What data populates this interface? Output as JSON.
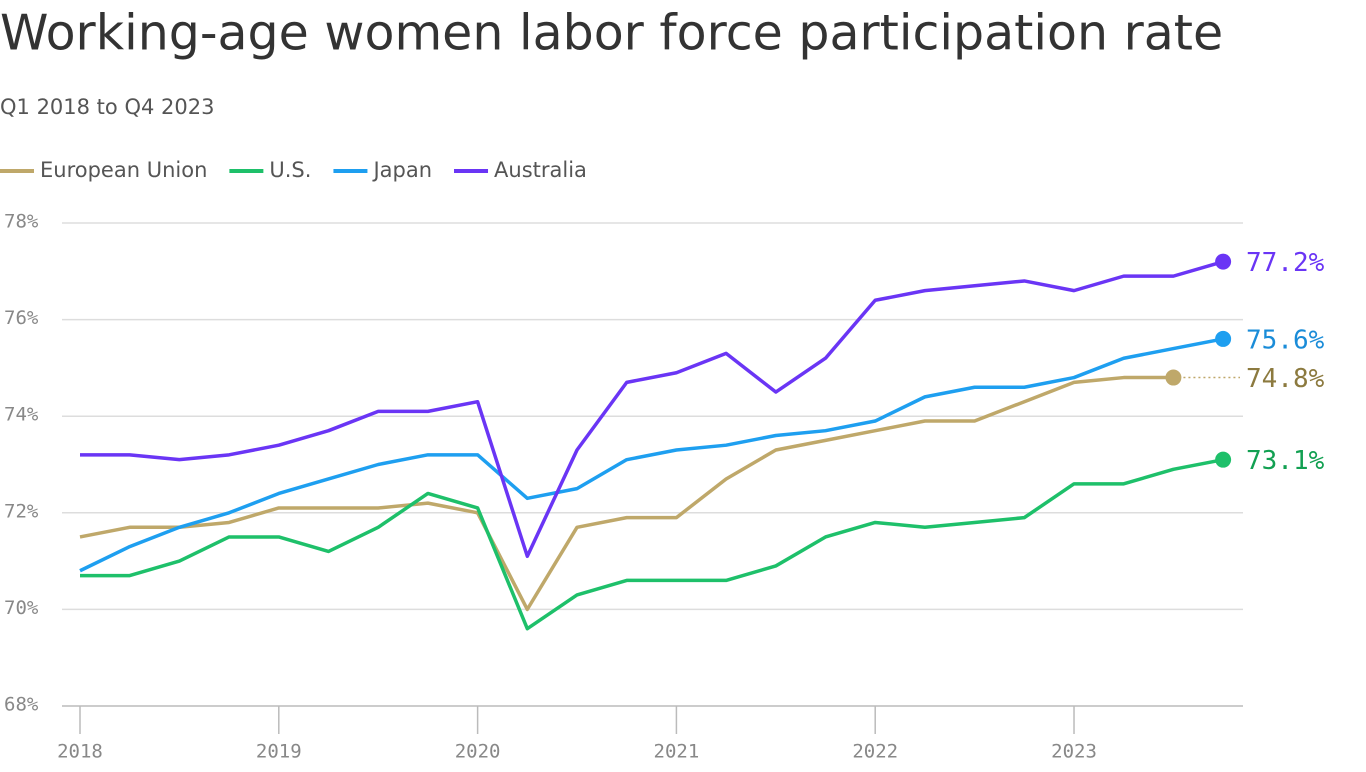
{
  "chart_data": {
    "type": "line",
    "title": "Working-age women labor force participation rate",
    "subtitle": "Q1 2018 to Q4 2023",
    "x": [
      2018,
      2018.25,
      2018.5,
      2018.75,
      2019,
      2019.25,
      2019.5,
      2019.75,
      2020,
      2020.25,
      2020.5,
      2020.75,
      2021,
      2021.25,
      2021.5,
      2021.75,
      2022,
      2022.25,
      2022.5,
      2022.75,
      2023,
      2023.25,
      2023.5,
      2023.75
    ],
    "xlim": [
      2018,
      2023.85
    ],
    "xticks": [
      2018,
      2019,
      2020,
      2021,
      2022,
      2023
    ],
    "ylim": [
      68,
      78
    ],
    "yticks": [
      {
        "value": 68,
        "label": "68%"
      },
      {
        "value": 70,
        "label": "70%"
      },
      {
        "value": 72,
        "label": "72%"
      },
      {
        "value": 74,
        "label": "74%"
      },
      {
        "value": 76,
        "label": "76%"
      },
      {
        "value": 78,
        "label": "78%"
      }
    ],
    "grid": true,
    "legend": "top-left",
    "series": [
      {
        "name": "European Union",
        "color": "#bfa86a",
        "label_color": "#8c7a3f",
        "values": [
          71.5,
          71.7,
          71.7,
          71.8,
          72.1,
          72.1,
          72.1,
          72.2,
          72.0,
          70.0,
          71.7,
          71.9,
          71.9,
          72.7,
          73.3,
          73.5,
          73.7,
          73.9,
          73.9,
          74.3,
          74.7,
          74.8,
          74.8,
          null
        ],
        "value_labels": [
          null,
          null,
          null,
          null,
          null,
          null,
          null,
          null,
          null,
          null,
          null,
          null,
          null,
          null,
          null,
          null,
          null,
          null,
          null,
          null,
          null,
          null,
          "74.8%",
          null
        ]
      },
      {
        "name": "U.S.",
        "color": "#1ec06a",
        "label_color": "#12a052",
        "values": [
          70.7,
          70.7,
          71.0,
          71.5,
          71.5,
          71.2,
          71.7,
          72.4,
          72.1,
          69.6,
          70.3,
          70.6,
          70.6,
          70.6,
          70.9,
          71.5,
          71.8,
          71.7,
          71.8,
          71.9,
          72.6,
          72.6,
          72.9,
          73.1
        ],
        "value_labels": [
          null,
          null,
          null,
          null,
          null,
          null,
          null,
          null,
          null,
          null,
          null,
          null,
          null,
          null,
          null,
          null,
          null,
          null,
          null,
          null,
          null,
          null,
          null,
          "73.1%"
        ]
      },
      {
        "name": "Japan",
        "color": "#1e9ff0",
        "label_color": "#1a8cd8",
        "values": [
          70.8,
          71.3,
          71.7,
          72.0,
          72.4,
          72.7,
          73.0,
          73.2,
          73.2,
          72.3,
          72.5,
          73.1,
          73.3,
          73.4,
          73.6,
          73.7,
          73.9,
          74.4,
          74.6,
          74.6,
          74.8,
          75.2,
          75.4,
          75.6
        ],
        "value_labels": [
          null,
          null,
          null,
          null,
          null,
          null,
          null,
          null,
          null,
          null,
          null,
          null,
          null,
          null,
          null,
          null,
          null,
          null,
          null,
          null,
          null,
          null,
          null,
          "75.6%"
        ]
      },
      {
        "name": "Australia",
        "color": "#6a35f5",
        "label_color": "#6a35f5",
        "values": [
          73.2,
          73.2,
          73.1,
          73.2,
          73.4,
          73.7,
          74.1,
          74.1,
          74.3,
          71.1,
          73.3,
          74.7,
          74.9,
          75.3,
          74.5,
          75.2,
          76.4,
          76.6,
          76.7,
          76.8,
          76.6,
          76.9,
          76.9,
          77.2
        ],
        "value_labels": [
          null,
          null,
          null,
          null,
          null,
          null,
          null,
          null,
          null,
          null,
          null,
          null,
          null,
          null,
          null,
          null,
          null,
          null,
          null,
          null,
          null,
          null,
          null,
          "77.2%"
        ]
      }
    ]
  }
}
